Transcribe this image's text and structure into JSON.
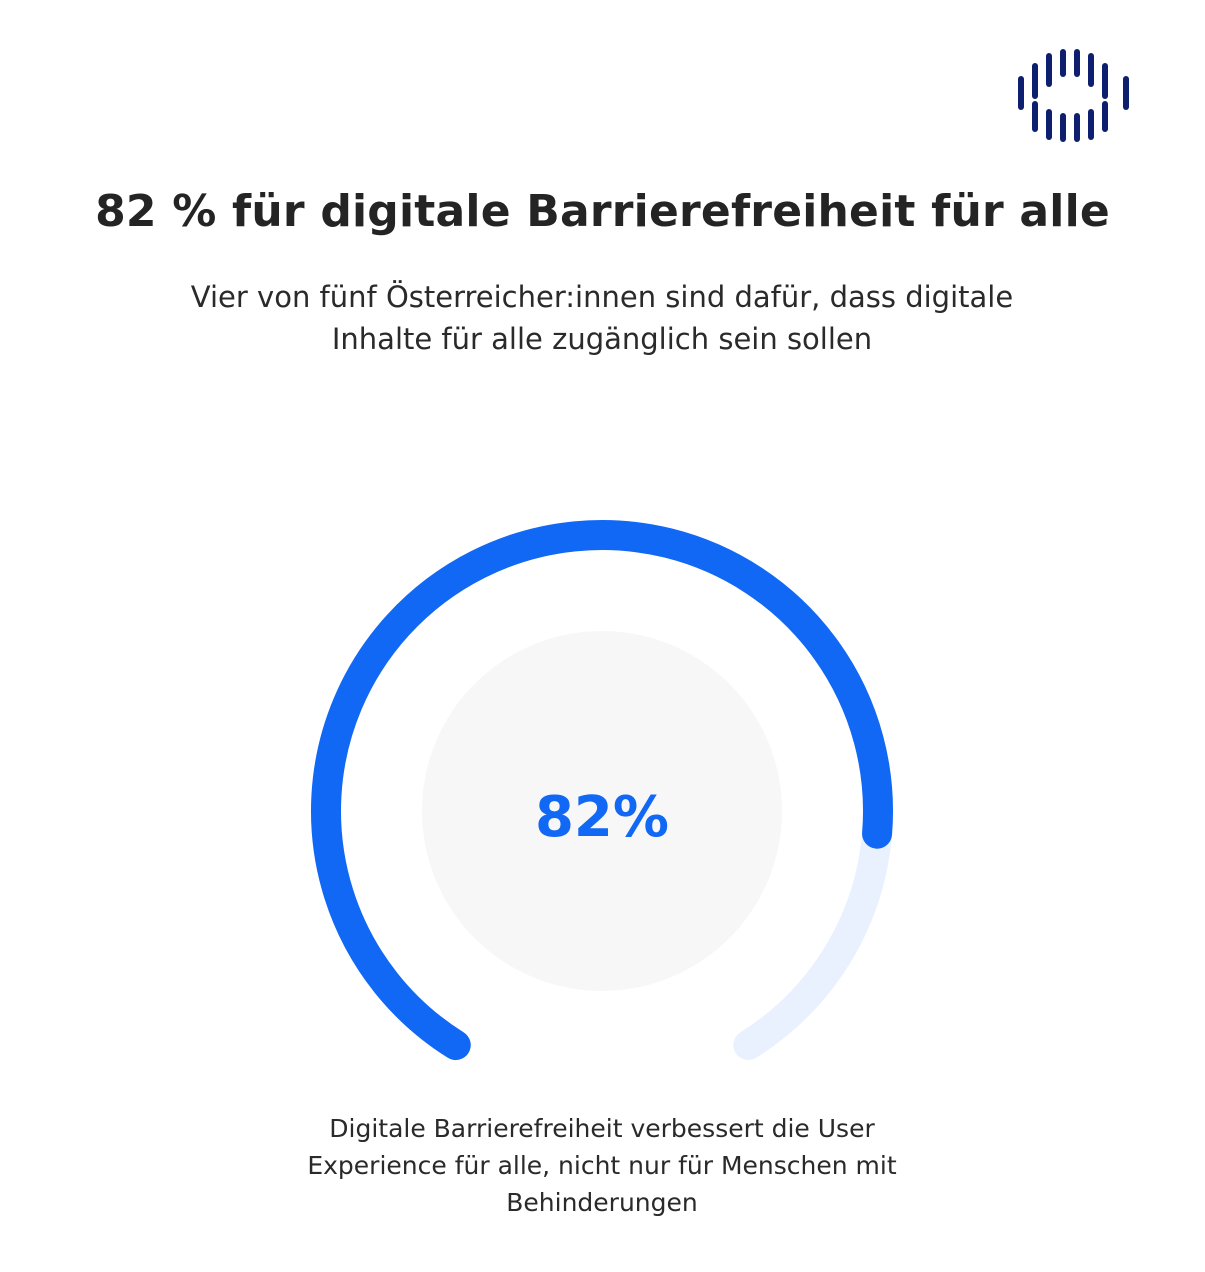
{
  "header": {
    "title": "82 % für digitale Barrierefreiheit für alle",
    "subtitle": "Vier von fünf Österreicher:innen sind dafür, dass digitale Inhalte für alle zugänglich sein sollen"
  },
  "chart_data": {
    "type": "gauge",
    "value": 82,
    "max": 100,
    "unit": "%",
    "value_label": "82%",
    "colors": {
      "fill": "#1168f5",
      "track": "#eaf1fe",
      "inner_circle": "#f7f7f7",
      "value_text": "#1168f5"
    }
  },
  "footer": {
    "note": "Digitale Barrierefreiheit verbessert die User Experience für alle, nicht nur für Menschen mit Behinderungen"
  },
  "logo": {
    "icon": "vertical-bars-logo-icon",
    "color": "#0d1f6e"
  }
}
